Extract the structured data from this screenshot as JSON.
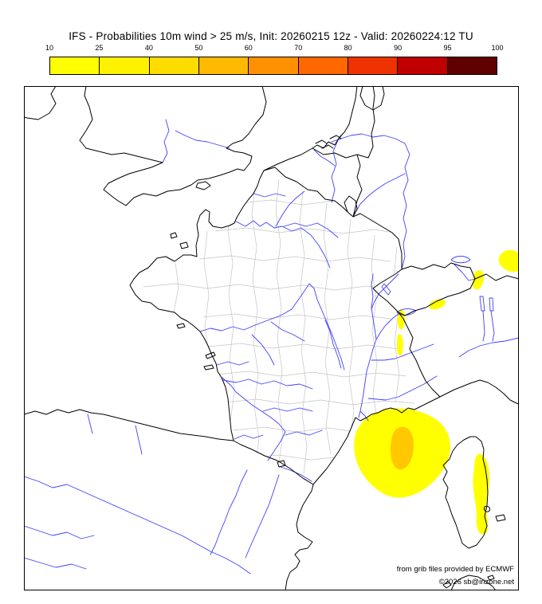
{
  "title": "IFS - Probabilities 10m wind > 25 m/s, Init: 20260215 12z - Valid: 20260224:12 TU",
  "colorbar": {
    "labels": [
      "10",
      "25",
      "40",
      "50",
      "60",
      "70",
      "80",
      "90",
      "95",
      "100"
    ],
    "colors": [
      "#ffff00",
      "#fff200",
      "#ffdc00",
      "#ffb900",
      "#ff9100",
      "#ff6800",
      "#ee3300",
      "#c00000",
      "#600000"
    ]
  },
  "credits": {
    "source": "from grib files provided by ECMWF",
    "copyright": "©2026 sb@irizone.net"
  },
  "map": {
    "colors": {
      "coast": "#000000",
      "river": "#4040ff",
      "department": "#c4c4c4",
      "prob_low": "#ffff00",
      "prob_mid": "#ffc800"
    },
    "probability_areas": [
      {
        "name": "Mediterranean sea south of Provence (Gulf of Lion)",
        "color": "#ffff00"
      },
      {
        "name": "core of Mediterranean area",
        "color": "#ffc800"
      },
      {
        "name": "east coast of Corsica",
        "color": "#ffff00"
      },
      {
        "name": "alpine spots (Jura / Alps / Piedmont)",
        "color": "#ffff00"
      }
    ]
  }
}
